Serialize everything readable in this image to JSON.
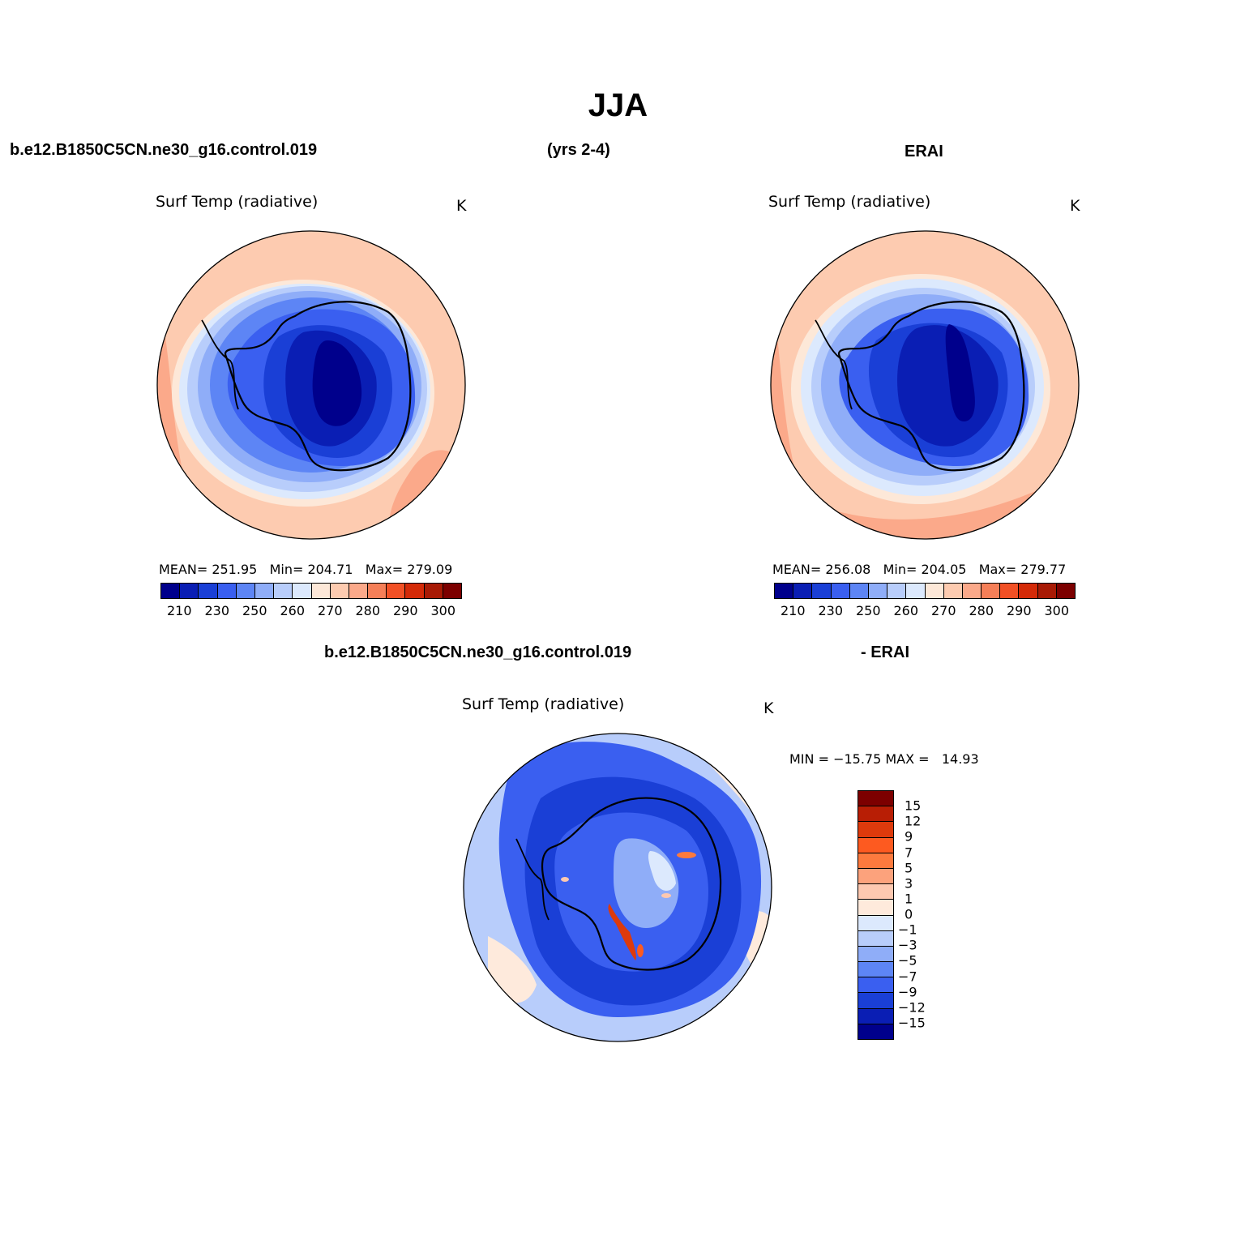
{
  "title": "JJA",
  "headers": {
    "case": "b.e12.B1850C5CN.ne30_g16.control.019",
    "years": "(yrs 2-4)",
    "obs": "ERAI",
    "diff_case": "b.e12.B1850C5CN.ne30_g16.control.019",
    "diff_obs": "- ERAI"
  },
  "panels": {
    "model": {
      "title": "Surf Temp (radiative)",
      "unit": "K",
      "stats": "MEAN= 251.95   Min= 204.71   Max= 279.09"
    },
    "obs": {
      "title": "Surf Temp (radiative)",
      "unit": "K",
      "stats": "MEAN= 256.08   Min= 204.05   Max= 279.77"
    },
    "diff": {
      "title": "Surf Temp (radiative)",
      "unit": "K",
      "stats": "MIN = −15.75 MAX =   14.93"
    }
  },
  "abs_colorbar": {
    "colors": [
      "#00008c",
      "#0a1eb4",
      "#1a3fd6",
      "#3a5ff0",
      "#5d85f5",
      "#8fadf8",
      "#b8cdfb",
      "#dce9fd",
      "#fde8d8",
      "#fdcbb0",
      "#fba98a",
      "#f57f58",
      "#f25025",
      "#d42a08",
      "#a81a05",
      "#7c0000"
    ],
    "labels": [
      "210",
      "230",
      "250",
      "260",
      "270",
      "280",
      "290",
      "300"
    ]
  },
  "diff_colorbar": {
    "colors": [
      "#7c0000",
      "#b81e05",
      "#dd3a0c",
      "#fd5a20",
      "#fd7a3e",
      "#fca27c",
      "#fdc8b0",
      "#feeadc",
      "#dce9fd",
      "#b8cdfb",
      "#8fadf8",
      "#5d85f5",
      "#3a5ff0",
      "#1a3fd6",
      "#0a1eb4",
      "#00008c"
    ],
    "labels": [
      "15",
      "12",
      "9",
      "7",
      "5",
      "3",
      "1",
      "0",
      "−1",
      "−3",
      "−5",
      "−7",
      "−9",
      "−12",
      "−15"
    ]
  }
}
